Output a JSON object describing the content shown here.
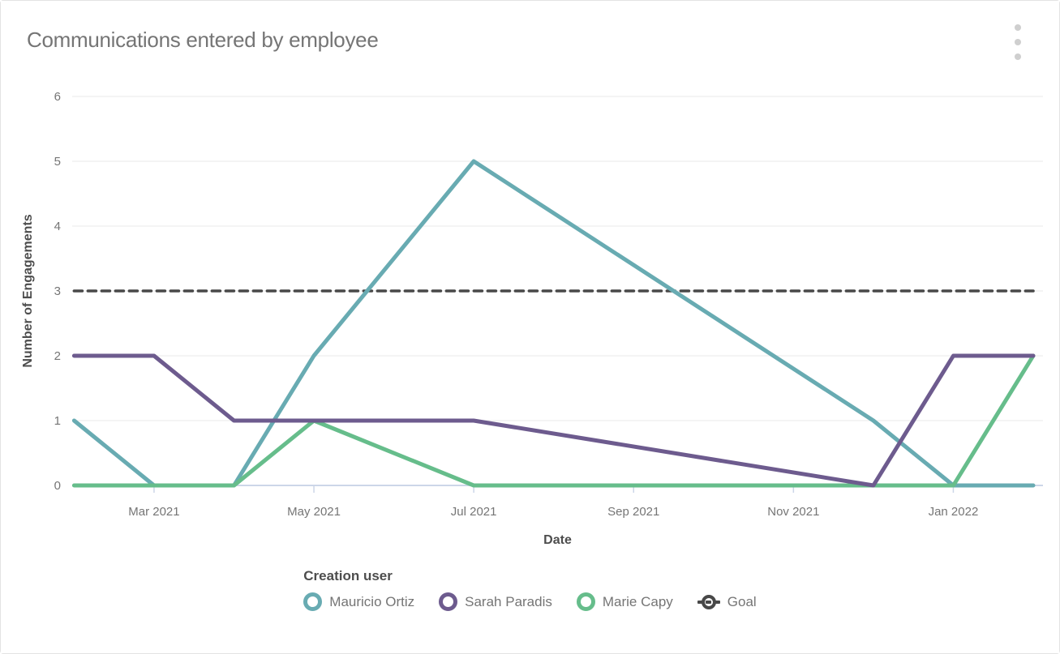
{
  "header": {
    "title": "Communications entered by employee"
  },
  "chart_data": {
    "type": "line",
    "title": "Communications entered by employee",
    "xlabel": "Date",
    "ylabel": "Number of Engagements",
    "ylim": [
      0,
      6
    ],
    "yticks": [
      0,
      1,
      2,
      3,
      4,
      5,
      6
    ],
    "grid": "horizontal",
    "x": [
      "Feb 2021",
      "Mar 2021",
      "Apr 2021",
      "May 2021",
      "Jul 2021",
      "Dec 2021",
      "Jan 2022",
      "Feb 2022"
    ],
    "month_index": [
      0,
      1,
      2,
      3,
      5,
      10,
      11,
      12
    ],
    "xticks": [
      {
        "label": "Mar 2021",
        "index": 1
      },
      {
        "label": "May 2021",
        "index": 3
      },
      {
        "label": "Jul 2021",
        "index": 5
      },
      {
        "label": "Sep 2021",
        "index": 7
      },
      {
        "label": "Nov 2021",
        "index": 9
      },
      {
        "label": "Jan 2022",
        "index": 11
      }
    ],
    "series": [
      {
        "name": "Mauricio Ortiz",
        "color": "#68abb2",
        "dash": false,
        "values": [
          1,
          0,
          0,
          2,
          5,
          1,
          0,
          0
        ]
      },
      {
        "name": "Sarah Paradis",
        "color": "#6d5b8e",
        "dash": false,
        "values": [
          2,
          2,
          1,
          1,
          1,
          0,
          2,
          2
        ]
      },
      {
        "name": "Marie Capy",
        "color": "#66bd8b",
        "dash": false,
        "values": [
          0,
          0,
          0,
          1,
          0,
          0,
          0,
          2
        ]
      },
      {
        "name": "Goal",
        "color": "#484848",
        "dash": true,
        "values": [
          3,
          3,
          3,
          3,
          3,
          3,
          3,
          3
        ]
      }
    ],
    "draw_order": [
      3,
      0,
      2,
      1
    ],
    "legend_title": "Creation user",
    "legend_position": "bottom",
    "colors": {
      "grid": "#ededed",
      "axis": "#ccd6e8",
      "title_text": "#757575",
      "tick_text": "#757575",
      "axis_title_text": "#4d4d4d",
      "menu_dots": "#cfcfcf"
    }
  }
}
